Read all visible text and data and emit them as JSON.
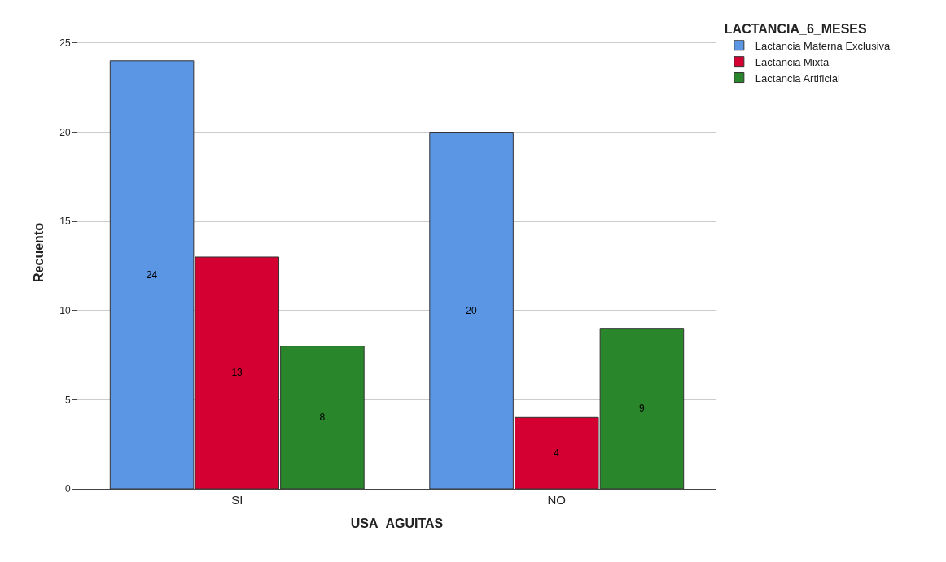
{
  "chart_data": {
    "type": "bar",
    "xlabel": "USA_AGUITAS",
    "ylabel": "Recuento",
    "legend_title": "LACTANCIA_6_MESES",
    "categories": [
      "SI",
      "NO"
    ],
    "series": [
      {
        "name": "Lactancia Materna Exclusiva",
        "color": "#5a96e3",
        "values": [
          24,
          20
        ]
      },
      {
        "name": "Lactancia Mixta",
        "color": "#d50032",
        "values": [
          13,
          4
        ]
      },
      {
        "name": "Lactancia Artificial",
        "color": "#2a862a",
        "values": [
          8,
          9
        ]
      }
    ],
    "ylim": [
      0,
      26.5
    ],
    "yticks": [
      0,
      5,
      10,
      15,
      20,
      25
    ],
    "grid": "y",
    "legend": "top right",
    "data_labels": true
  }
}
